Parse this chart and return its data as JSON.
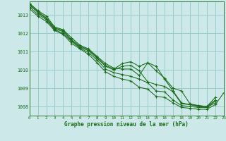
{
  "title": "Graphe pression niveau de la mer (hPa)",
  "bg_color": "#cce8e8",
  "grid_color": "#99cccc",
  "line_color": "#1a6b1a",
  "xlim": [
    0,
    23
  ],
  "ylim": [
    1007.5,
    1013.75
  ],
  "yticks": [
    1008,
    1009,
    1010,
    1011,
    1012,
    1013
  ],
  "xticks": [
    0,
    1,
    2,
    3,
    4,
    5,
    6,
    7,
    8,
    9,
    10,
    11,
    12,
    13,
    14,
    15,
    16,
    17,
    18,
    19,
    20,
    21,
    22,
    23
  ],
  "series": [
    [
      1013.65,
      1013.25,
      1012.95,
      1012.35,
      1012.2,
      1011.75,
      1011.35,
      1011.15,
      1010.75,
      1010.35,
      1010.1,
      1010.05,
      1010.05,
      1009.7,
      1010.4,
      1010.2,
      1009.5,
      1008.85,
      1008.2,
      1008.1,
      1008.05,
      1008.0,
      1008.35,
      null
    ],
    [
      1013.6,
      1013.2,
      1012.85,
      1012.3,
      1012.15,
      1011.65,
      1011.3,
      1011.1,
      1010.7,
      1010.25,
      1010.05,
      1010.35,
      1010.45,
      1010.2,
      1010.4,
      1009.95,
      1009.55,
      1009.0,
      1008.85,
      1008.15,
      1008.05,
      1008.0,
      1008.5,
      null
    ],
    [
      1013.55,
      1013.15,
      1012.8,
      1012.25,
      1012.1,
      1011.6,
      1011.25,
      1011.05,
      1010.65,
      1010.2,
      1010.0,
      1010.2,
      1010.25,
      1009.95,
      1009.35,
      1009.2,
      1009.1,
      1008.8,
      1008.15,
      1008.1,
      1008.0,
      1007.95,
      1008.3,
      null
    ],
    [
      1013.45,
      1013.05,
      1012.75,
      1012.2,
      1012.0,
      1011.55,
      1011.2,
      1010.95,
      1010.55,
      1010.05,
      1009.85,
      1009.75,
      1009.65,
      1009.5,
      1009.3,
      1008.85,
      1008.8,
      1008.35,
      1008.05,
      1008.0,
      1007.95,
      1007.95,
      1008.2,
      null
    ],
    [
      1013.35,
      1012.95,
      1012.65,
      1012.15,
      1011.95,
      1011.45,
      1011.15,
      1010.85,
      1010.4,
      1009.9,
      1009.65,
      1009.5,
      1009.4,
      1009.05,
      1008.95,
      1008.55,
      1008.5,
      1008.2,
      1007.95,
      1007.9,
      1007.85,
      1007.85,
      1008.1,
      1008.75
    ]
  ]
}
